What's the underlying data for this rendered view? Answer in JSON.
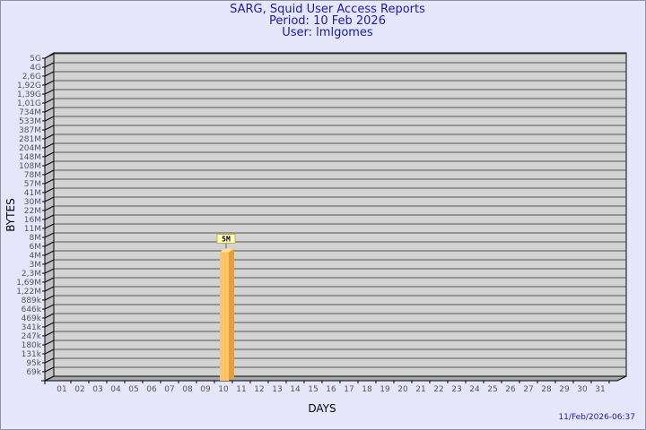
{
  "header": {
    "title": "SARG, Squid User Access Reports",
    "period": "Period: 10 Feb 2026",
    "user": "User: lmlgomes"
  },
  "footer": {
    "timestamp": "11/Feb/2026-06:37"
  },
  "colors": {
    "background": "#e6e6fa",
    "plot": "#d3d3d3",
    "bar": "#ffc266",
    "bar_side": "#e0a040",
    "text": "#1c1c9c"
  },
  "chart_data": {
    "type": "bar",
    "style": "3d",
    "xlabel": "DAYS",
    "ylabel": "BYTES",
    "categories": [
      "01",
      "02",
      "03",
      "04",
      "05",
      "06",
      "07",
      "08",
      "09",
      "10",
      "11",
      "12",
      "13",
      "14",
      "15",
      "16",
      "17",
      "18",
      "19",
      "20",
      "21",
      "22",
      "23",
      "24",
      "25",
      "26",
      "27",
      "28",
      "29",
      "30",
      "31"
    ],
    "y_ticks": [
      "69k",
      "95k",
      "131k",
      "180k",
      "247k",
      "341k",
      "469k",
      "646k",
      "889k",
      "1,22M",
      "1,69M",
      "2,3M",
      "3M",
      "4M",
      "6M",
      "8M",
      "11M",
      "16M",
      "22M",
      "30M",
      "41M",
      "57M",
      "78M",
      "108M",
      "148M",
      "204M",
      "281M",
      "387M",
      "533M",
      "734M",
      "1,01G",
      "1,39G",
      "1,92G",
      "2,6G",
      "4G",
      "5G"
    ],
    "y_scale": "log",
    "grid": true,
    "series": [
      {
        "values": [
          null,
          null,
          null,
          null,
          null,
          null,
          null,
          null,
          null,
          "5M",
          null,
          null,
          null,
          null,
          null,
          null,
          null,
          null,
          null,
          null,
          null,
          null,
          null,
          null,
          null,
          null,
          null,
          null,
          null,
          null,
          null
        ]
      }
    ],
    "data_labels": [
      {
        "category": "10",
        "text": "5M"
      }
    ]
  }
}
